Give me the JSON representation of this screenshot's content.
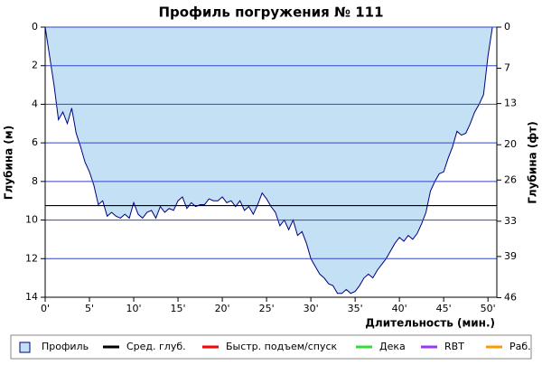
{
  "chart_data": {
    "type": "area",
    "title": "Профиль погружения № 111",
    "x_label": "Длительность (мин.)",
    "y_label": "Глубина (м)",
    "y2_label": "Глубина (фт)",
    "x": [
      0,
      0.5,
      1,
      1.5,
      2,
      2.5,
      3,
      3.5,
      4,
      4.5,
      5,
      5.5,
      6,
      6.5,
      7,
      7.5,
      8,
      8.5,
      9,
      9.5,
      10,
      10.5,
      11,
      11.5,
      12,
      12.5,
      13,
      13.5,
      14,
      14.5,
      15,
      15.5,
      16,
      16.5,
      17,
      17.5,
      18,
      18.5,
      19,
      19.5,
      20,
      20.5,
      21,
      21.5,
      22,
      22.5,
      23,
      23.5,
      24,
      24.5,
      25,
      25.5,
      26,
      26.5,
      27,
      27.5,
      28,
      28.5,
      29,
      29.5,
      30,
      30.5,
      31,
      31.5,
      32,
      32.5,
      33,
      33.5,
      34,
      34.5,
      35,
      35.5,
      36,
      36.5,
      37,
      37.5,
      38,
      38.5,
      39,
      39.5,
      40,
      40.5,
      41,
      41.5,
      42,
      42.5,
      43,
      43.5,
      44,
      44.5,
      45,
      45.5,
      46,
      46.5,
      47,
      47.5,
      48,
      48.5,
      49,
      49.5,
      50,
      50.5
    ],
    "series": [
      {
        "name": "Профиль",
        "color": "#c4e0f4",
        "line_color": "#000080",
        "values": [
          0,
          1.5,
          3,
          4.8,
          4.4,
          5.0,
          4.2,
          5.5,
          6.2,
          7.0,
          7.5,
          8.2,
          9.2,
          9.0,
          9.8,
          9.6,
          9.8,
          9.9,
          9.7,
          9.9,
          9.1,
          9.7,
          9.9,
          9.6,
          9.5,
          9.9,
          9.3,
          9.6,
          9.4,
          9.5,
          9.0,
          8.8,
          9.4,
          9.1,
          9.3,
          9.2,
          9.2,
          8.9,
          9.0,
          9.0,
          8.8,
          9.1,
          9.0,
          9.3,
          9.0,
          9.5,
          9.3,
          9.7,
          9.2,
          8.6,
          8.9,
          9.3,
          9.6,
          10.3,
          10.0,
          10.5,
          10.0,
          10.8,
          10.6,
          11.2,
          12.0,
          12.4,
          12.8,
          13.0,
          13.3,
          13.4,
          13.8,
          13.8,
          13.6,
          13.8,
          13.7,
          13.4,
          13.0,
          12.8,
          13.0,
          12.6,
          12.3,
          12.0,
          11.6,
          11.2,
          10.9,
          11.1,
          10.8,
          11.0,
          10.7,
          10.2,
          9.6,
          8.5,
          8.0,
          7.6,
          7.5,
          6.8,
          6.2,
          5.4,
          5.6,
          5.5,
          5.0,
          4.4,
          4.0,
          3.5,
          1.5,
          0
        ]
      }
    ],
    "average_depth": {
      "name": "Сред. глуб.",
      "color": "#000000",
      "value": 9.25
    },
    "other_legend": [
      {
        "name": "Быстр. подъем/спуск",
        "color": "#ff0000"
      },
      {
        "name": "Дека",
        "color": "#33dd33"
      },
      {
        "name": "RBT",
        "color": "#9933ff"
      },
      {
        "name": "Раб.",
        "color": "#ff9900"
      }
    ],
    "xlim": [
      0,
      51
    ],
    "xticks": [
      {
        "value": 0,
        "label": "0'"
      },
      {
        "value": 5,
        "label": "5'"
      },
      {
        "value": 10,
        "label": "10'"
      },
      {
        "value": 15,
        "label": "15'"
      },
      {
        "value": 20,
        "label": "20'"
      },
      {
        "value": 25,
        "label": "25'"
      },
      {
        "value": 30,
        "label": "30'"
      },
      {
        "value": 35,
        "label": "35'"
      },
      {
        "value": 40,
        "label": "40'"
      },
      {
        "value": 45,
        "label": "45'"
      },
      {
        "value": 50,
        "label": "50'"
      }
    ],
    "ylim": [
      0,
      14
    ],
    "y_inverted": true,
    "yticks": [
      0,
      2,
      4,
      6,
      8,
      10,
      12,
      14
    ],
    "y2lim": [
      0,
      45.93
    ],
    "y2ticks": [
      0,
      7,
      13,
      20,
      26,
      33,
      39,
      46
    ],
    "grid": true,
    "grid_color": "#3344cc"
  }
}
